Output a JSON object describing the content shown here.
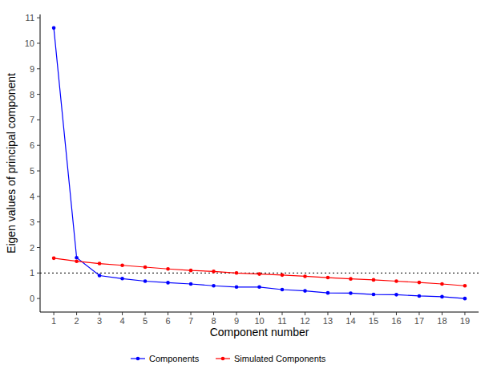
{
  "chart_data": {
    "type": "line",
    "x_label": "Component number",
    "y_label": "Eigen values of principal component",
    "x": [
      1,
      2,
      3,
      4,
      5,
      6,
      7,
      8,
      9,
      10,
      11,
      12,
      13,
      14,
      15,
      16,
      17,
      18,
      19
    ],
    "series": [
      {
        "name": "Components",
        "color": "#0000ff",
        "marker": "circle",
        "values": [
          10.6,
          1.6,
          0.9,
          0.78,
          0.68,
          0.62,
          0.57,
          0.5,
          0.45,
          0.45,
          0.35,
          0.3,
          0.22,
          0.21,
          0.16,
          0.15,
          0.1,
          0.07,
          0.0
        ]
      },
      {
        "name": "Simulated Components",
        "color": "#ff0000",
        "marker": "circle",
        "values": [
          1.58,
          1.46,
          1.37,
          1.3,
          1.23,
          1.16,
          1.1,
          1.06,
          1.0,
          0.96,
          0.92,
          0.87,
          0.82,
          0.77,
          0.73,
          0.68,
          0.63,
          0.57,
          0.5
        ]
      }
    ],
    "reference_line": 1,
    "xlim": [
      0.4,
      19.6
    ],
    "xticks": [
      1,
      2,
      3,
      4,
      5,
      6,
      7,
      8,
      9,
      10,
      11,
      12,
      13,
      14,
      15,
      16,
      17,
      18,
      19
    ],
    "ylim": [
      -0.53,
      11.13
    ],
    "yticks": [
      0,
      1,
      2,
      3,
      4,
      5,
      6,
      7,
      8,
      9,
      10,
      11
    ],
    "grid": false,
    "legend": "bottom"
  }
}
